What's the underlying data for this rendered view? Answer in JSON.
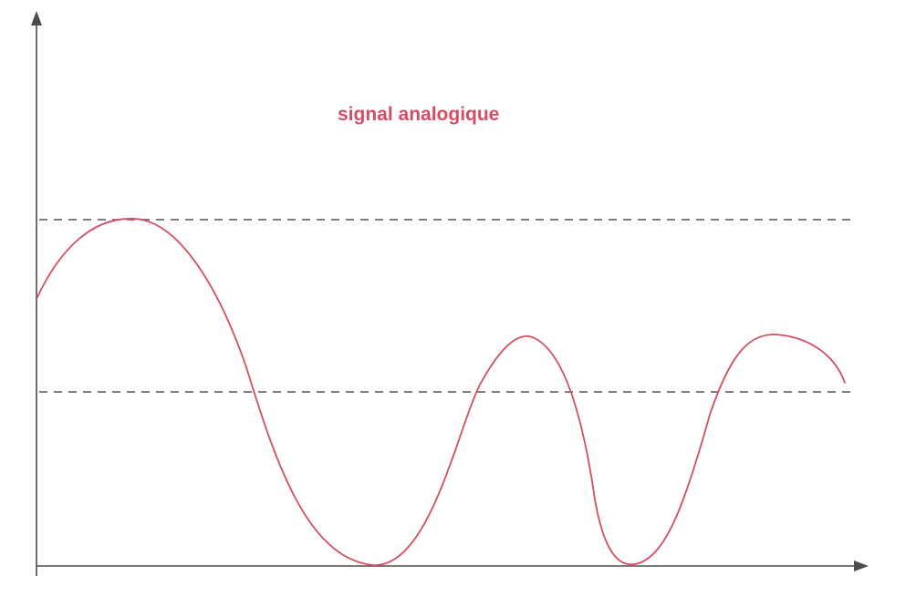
{
  "diagram": {
    "title": "signal analogique",
    "signal_color": "#d34d63",
    "axis_color": "#4d4d4d",
    "threshold_color": "#555555"
  },
  "elements": {
    "x_axis": "arrow",
    "y_axis": "arrow",
    "thresholds": [
      "upper-dashed-line",
      "lower-dashed-line"
    ],
    "signal": "smooth-analog-waveform"
  }
}
